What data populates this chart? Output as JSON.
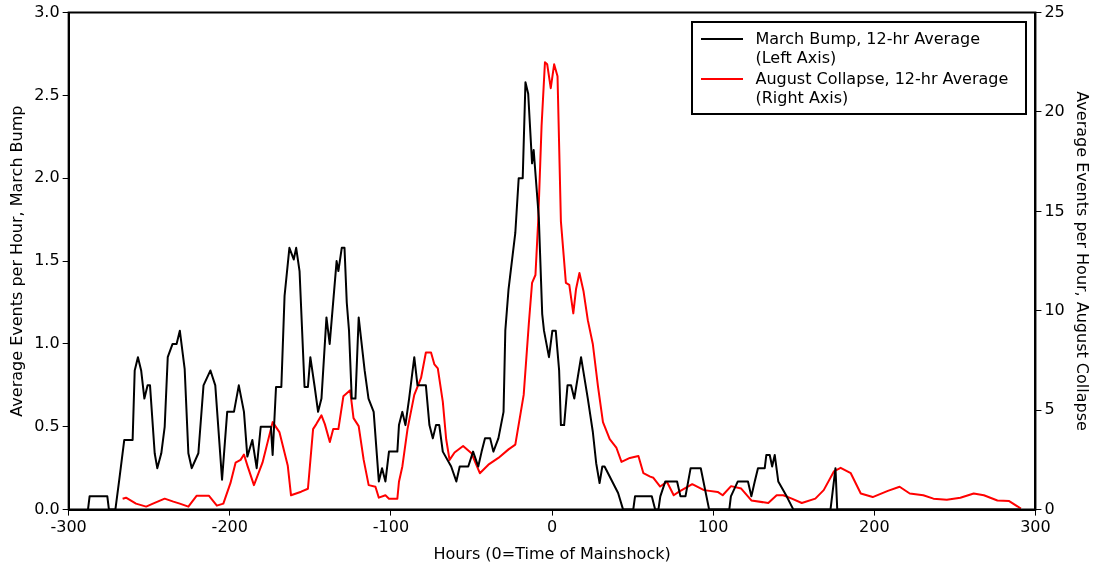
{
  "chart_data": {
    "type": "line",
    "xlabel": "Hours (0=Time of Mainshock)",
    "ylabel": "Average Events per Hour, March Bump",
    "y2label": "Average Events per Hour, August Collapse",
    "xlim": [
      -300,
      300
    ],
    "xticks": [
      -300,
      -200,
      -100,
      0,
      100,
      200,
      300
    ],
    "ylim": [
      0,
      3
    ],
    "yticks": [
      {
        "value": 0,
        "label": "0.0"
      },
      {
        "value": 0.5,
        "label": "0.5"
      },
      {
        "value": 1,
        "label": "1.0"
      },
      {
        "value": 1.5,
        "label": "1.5"
      },
      {
        "value": 2,
        "label": "2.0"
      },
      {
        "value": 2.5,
        "label": "2.5"
      },
      {
        "value": 3,
        "label": "3.0"
      }
    ],
    "y2lim": [
      0,
      25
    ],
    "y2ticks": [
      0,
      5,
      10,
      15,
      20,
      25
    ],
    "grid": false,
    "legend": "top right",
    "marker": "none",
    "line_style": "solid",
    "series": [
      {
        "name": "March Bump, 12-hr Average (Left Axis)",
        "color": "#000000",
        "axis": "y",
        "x": [
          -288,
          -287,
          -276,
          -275,
          -271,
          -268.6,
          -265.5,
          -260.3,
          -259,
          -257,
          -255,
          -253,
          -251,
          -249.5,
          -246.6,
          -245,
          -242.5,
          -240.4,
          -238.5,
          -235.5,
          -233,
          -231,
          -228,
          -225.7,
          -223.6,
          -219.5,
          -216.3,
          -212,
          -209,
          -204.8,
          -201.6,
          -197.4,
          -194.4,
          -191.2,
          -189.1,
          -186,
          -183.3,
          -180.8,
          -174.5,
          -173.4,
          -171.3,
          -168,
          -166,
          -163,
          -160.3,
          -158.8,
          -156.7,
          -153.6,
          -151.5,
          -150,
          -147.3,
          -145.2,
          -143.1,
          -140,
          -138,
          -133.7,
          -132.6,
          -130.5,
          -128.8,
          -127.4,
          -126,
          -124.3,
          -122,
          -120,
          -116.3,
          -113.9,
          -110.7,
          -107.5,
          -105.5,
          -103.4,
          -101.2,
          -96,
          -95,
          -92.9,
          -91,
          -88.7,
          -85.5,
          -83.5,
          -78.3,
          -76.1,
          -74,
          -72,
          -70,
          -67.8,
          -62.6,
          -59.4,
          -57.3,
          -52,
          -49,
          -45.8,
          -43.7,
          -41.6,
          -38.4,
          -36.4,
          -33.3,
          -30.1,
          -29,
          -27,
          -24.9,
          -22.8,
          -20.7,
          -18.2,
          -16.5,
          -14.8,
          -12.4,
          -11.4,
          -8.2,
          -6.1,
          -5,
          -1.9,
          0.2,
          2.3,
          4.4,
          5.5,
          7.5,
          9.6,
          11.8,
          13.8,
          18,
          22.2,
          25.3,
          27.4,
          29.5,
          31.2,
          32.6,
          41,
          44.1,
          50.4,
          51.5,
          61.9,
          64,
          66,
          67.2,
          70.3,
          77.6,
          79.7,
          82.8,
          86,
          92.3,
          97.5,
          110,
          111,
          115.3,
          121.6,
          123.7,
          125.8,
          127.8,
          132,
          133,
          135.1,
          136.6,
          138.2,
          140.4,
          145.6,
          149.8,
          172.8,
          173.8,
          175.9,
          177,
          290
        ],
        "values": [
          0,
          0.08,
          0.08,
          0,
          0,
          0.18,
          0.42,
          0.42,
          0.84,
          0.92,
          0.84,
          0.67,
          0.75,
          0.75,
          0.34,
          0.25,
          0.34,
          0.5,
          0.92,
          1.0,
          1.0,
          1.08,
          0.85,
          0.34,
          0.25,
          0.34,
          0.75,
          0.84,
          0.75,
          0.18,
          0.59,
          0.59,
          0.75,
          0.59,
          0.32,
          0.42,
          0.25,
          0.5,
          0.5,
          0.33,
          0.74,
          0.74,
          1.29,
          1.58,
          1.51,
          1.58,
          1.44,
          0.74,
          0.74,
          0.92,
          0.74,
          0.59,
          0.67,
          1.16,
          1.0,
          1.5,
          1.44,
          1.58,
          1.58,
          1.25,
          1.08,
          0.67,
          0.67,
          1.16,
          0.84,
          0.67,
          0.59,
          0.17,
          0.25,
          0.17,
          0.35,
          0.35,
          0.51,
          0.59,
          0.51,
          0.67,
          0.92,
          0.75,
          0.75,
          0.51,
          0.43,
          0.51,
          0.51,
          0.35,
          0.26,
          0.17,
          0.26,
          0.26,
          0.35,
          0.26,
          0.35,
          0.43,
          0.43,
          0.35,
          0.43,
          0.59,
          1.08,
          1.33,
          1.5,
          1.67,
          2.0,
          2.0,
          2.58,
          2.51,
          2.09,
          2.17,
          1.76,
          1.18,
          1.08,
          0.92,
          1.08,
          1.08,
          0.84,
          0.51,
          0.51,
          0.75,
          0.75,
          0.67,
          0.92,
          0.67,
          0.47,
          0.28,
          0.16,
          0.26,
          0.26,
          0.1,
          0,
          0,
          0.08,
          0.08,
          0,
          0,
          0.08,
          0.17,
          0.17,
          0.08,
          0.08,
          0.25,
          0.25,
          0,
          0,
          0.08,
          0.17,
          0.17,
          0.08,
          0.17,
          0.25,
          0.25,
          0.33,
          0.33,
          0.26,
          0.33,
          0.17,
          0.08,
          0,
          0,
          0.08,
          0.25,
          0,
          0
        ]
      },
      {
        "name": "August Collapse, 12-hr Average (Right Axis)",
        "color": "#ff0000",
        "axis": "y2",
        "x": [
          -266.5,
          -264.4,
          -258.2,
          -251.9,
          -247.7,
          -240.4,
          -235,
          -231,
          -225.7,
          -220.5,
          -213,
          -208,
          -204,
          -199.6,
          -196.4,
          -193.3,
          -191.2,
          -189,
          -185,
          -179.7,
          -173.4,
          -169.2,
          -164,
          -162,
          -155.7,
          -151.5,
          -148.3,
          -146.3,
          -143.1,
          -141,
          -137.9,
          -135.8,
          -132.6,
          -129.5,
          -125.3,
          -123.2,
          -120,
          -116.9,
          -113.8,
          -109.6,
          -107.5,
          -103.4,
          -101.2,
          -96,
          -95,
          -92.9,
          -89.7,
          -85.5,
          -81.3,
          -78.3,
          -75.1,
          -73,
          -70.9,
          -67.8,
          -65.7,
          -63.6,
          -60.5,
          -55.2,
          -50,
          -44.8,
          -39.5,
          -33.3,
          -27,
          -22.8,
          -17.6,
          -14.4,
          -12.4,
          -10.3,
          -8.6,
          -6.5,
          -4.4,
          -3,
          -0.8,
          1.3,
          3.4,
          5.5,
          8.6,
          10.7,
          13.2,
          14.9,
          17,
          19.5,
          22.2,
          25.3,
          28.5,
          31.6,
          35.8,
          40,
          43.1,
          48.3,
          53.6,
          56.7,
          60.9,
          62.9,
          67.1,
          71.3,
          75.5,
          78.6,
          87,
          94.3,
          102.8,
          105.9,
          111.1,
          117.4,
          123.7,
          134.2,
          139.4,
          143.5,
          148.8,
          155,
          163.4,
          168.6,
          174.9,
          179.1,
          185.4,
          191.6,
          199,
          208.4,
          215.7,
          222,
          230.4,
          236.7,
          245,
          253.4,
          261.7,
          268,
          276.4,
          283.7,
          291
        ],
        "values": [
          0.55,
          0.6,
          0.3,
          0.15,
          0.3,
          0.55,
          0.4,
          0.3,
          0.15,
          0.7,
          0.7,
          0.2,
          0.3,
          1.33,
          2.36,
          2.5,
          2.77,
          2.2,
          1.23,
          2.36,
          4.4,
          3.9,
          2.2,
          0.72,
          0.9,
          1.05,
          4.05,
          4.3,
          4.74,
          4.3,
          3.4,
          4.05,
          4.05,
          5.7,
          6.0,
          4.6,
          4.2,
          2.5,
          1.23,
          1.15,
          0.6,
          0.72,
          0.55,
          0.55,
          1.4,
          2.17,
          4.05,
          5.77,
          6.62,
          7.9,
          7.9,
          7.3,
          7.1,
          5.43,
          3.54,
          2.5,
          2.87,
          3.2,
          2.83,
          1.83,
          2.26,
          2.6,
          3.03,
          3.27,
          5.77,
          9.36,
          11.4,
          11.8,
          14.5,
          19.3,
          22.5,
          22.4,
          21.2,
          22.4,
          21.8,
          14.5,
          11.4,
          11.3,
          9.87,
          11.1,
          11.9,
          11.0,
          9.53,
          8.33,
          6.2,
          4.4,
          3.54,
          3.1,
          2.4,
          2.6,
          2.7,
          1.83,
          1.66,
          1.6,
          1.16,
          1.4,
          0.72,
          0.89,
          1.28,
          0.98,
          0.89,
          0.72,
          1.18,
          1.06,
          0.46,
          0.33,
          0.72,
          0.72,
          0.55,
          0.33,
          0.55,
          0.98,
          1.92,
          2.1,
          1.83,
          0.81,
          0.63,
          0.94,
          1.15,
          0.81,
          0.72,
          0.55,
          0.5,
          0.6,
          0.81,
          0.72,
          0.46,
          0.43,
          0.05
        ]
      }
    ]
  }
}
